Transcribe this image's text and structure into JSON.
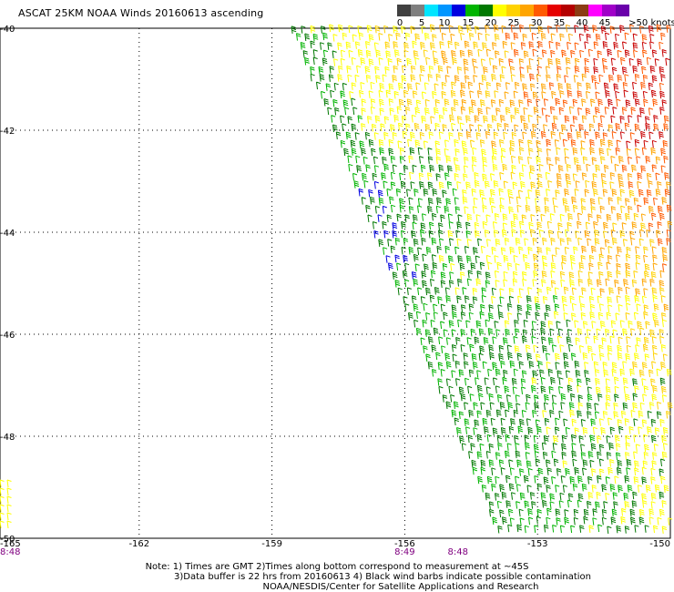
{
  "title": "ASCAT 25KM NOAA Winds 20160613 ascending",
  "legend": {
    "labels": [
      "0",
      "5",
      "10",
      "15",
      "20",
      "25",
      "30",
      "35",
      "40",
      "45",
      ">50 knots"
    ],
    "colors": [
      "#404040",
      "#7f7f7f",
      "#00e5ff",
      "#0096ff",
      "#0000e0",
      "#00b400",
      "#007800",
      "#ffff00",
      "#ffd200",
      "#ffa500",
      "#ff5a00",
      "#e60000",
      "#b40000",
      "#8c3c14",
      "#ff00ff",
      "#a000c8",
      "#6a00aa"
    ]
  },
  "map": {
    "lat_labels": [
      "-40",
      "-42",
      "-44",
      "-46",
      "-48",
      "-50"
    ],
    "lon_labels": [
      "-165",
      "-162",
      "-159",
      "-156",
      "-153",
      "-150"
    ],
    "time_labels": [
      {
        "text": "8:48",
        "lon": -165
      },
      {
        "text": "8:49",
        "lon": -156
      },
      {
        "text": "8:48",
        "lon": -154.8
      }
    ],
    "barb_colors": {
      "green": "#00b400",
      "dark_green": "#007800",
      "yellow": "#ffff00",
      "gold": "#ffd200",
      "orange": "#ffa500",
      "dark_orange": "#ff5a00",
      "red": "#c80000",
      "blue": "#0000e0"
    }
  },
  "notes": {
    "line1": "Note: 1) Times are GMT 2)Times along bottom correspond to measurement at ~45S",
    "line2": "3)Data buffer is 22 hrs from 20160613 4) Black wind barbs indicate possible contamination",
    "line3": "NOAA/NESDIS/Center for Satellite Applications and Research"
  }
}
